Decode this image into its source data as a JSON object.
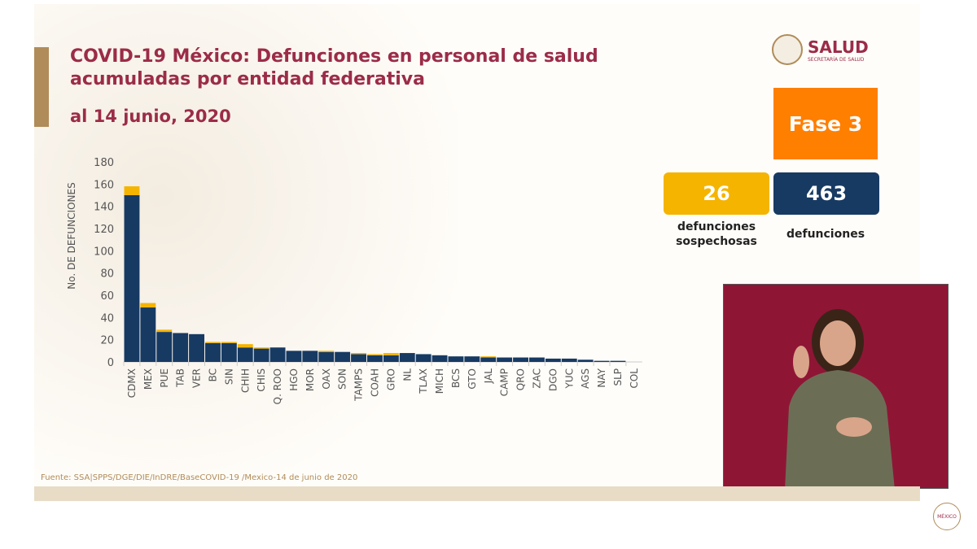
{
  "header": {
    "title_line1": "COVID-19 México: Defunciones en personal de salud",
    "title_line2": "acumuladas por entidad federativa",
    "date": "al 14 junio, 2020"
  },
  "logo": {
    "name": "SALUD",
    "subtitle": "SECRETARÍA DE SALUD"
  },
  "phase": "Fase 3",
  "stats": [
    {
      "value": "26",
      "label_line1": "defunciones",
      "label_line2": "sospechosas",
      "color": "#f5b400"
    },
    {
      "value": "463",
      "label_line1": "defunciones",
      "label_line2": "",
      "color": "#173a63"
    }
  ],
  "footer": "Fuente: SSA|SPPS/DGE/DIE/InDRE/BaseCOVID-19 /Mexico-14 de junio de 2020",
  "corner_logo": "MÉXICO",
  "chart_data": {
    "type": "bar",
    "stacked": true,
    "title": "",
    "xlabel": "",
    "ylabel": "No. DE DEFUNCIONES",
    "ylim": [
      0,
      180
    ],
    "yticks": [
      0,
      20,
      40,
      60,
      80,
      100,
      120,
      140,
      160,
      180
    ],
    "grid": false,
    "categories": [
      "CDMX",
      "MEX",
      "PUE",
      "TAB",
      "VER",
      "BC",
      "SIN",
      "CHIH",
      "CHIS",
      "Q. ROO",
      "HGO",
      "MOR",
      "OAX",
      "SON",
      "TAMPS",
      "COAH",
      "GRO",
      "NL",
      "TLAX",
      "MICH",
      "BCS",
      "GTO",
      "JAL",
      "CAMP",
      "QRO",
      "ZAC",
      "DGO",
      "YUC",
      "AGS",
      "NAY",
      "SLP",
      "COL"
    ],
    "series": [
      {
        "values": [
          150,
          49,
          27,
          26,
          25,
          17,
          17,
          13,
          12,
          13,
          10,
          10,
          9,
          9,
          7,
          6,
          6,
          8,
          7,
          6,
          5,
          5,
          4,
          4,
          4,
          4,
          3,
          3,
          2,
          1,
          1,
          0
        ],
        "color": "#173a63"
      },
      {
        "values": [
          8,
          4,
          2,
          0,
          0,
          1,
          1,
          3,
          1,
          0,
          0,
          0,
          1,
          0,
          1,
          1,
          2,
          0,
          0,
          0,
          0,
          0,
          1,
          0,
          0,
          0,
          0,
          0,
          0,
          0,
          0,
          0
        ],
        "color": "#f5b400"
      }
    ]
  }
}
